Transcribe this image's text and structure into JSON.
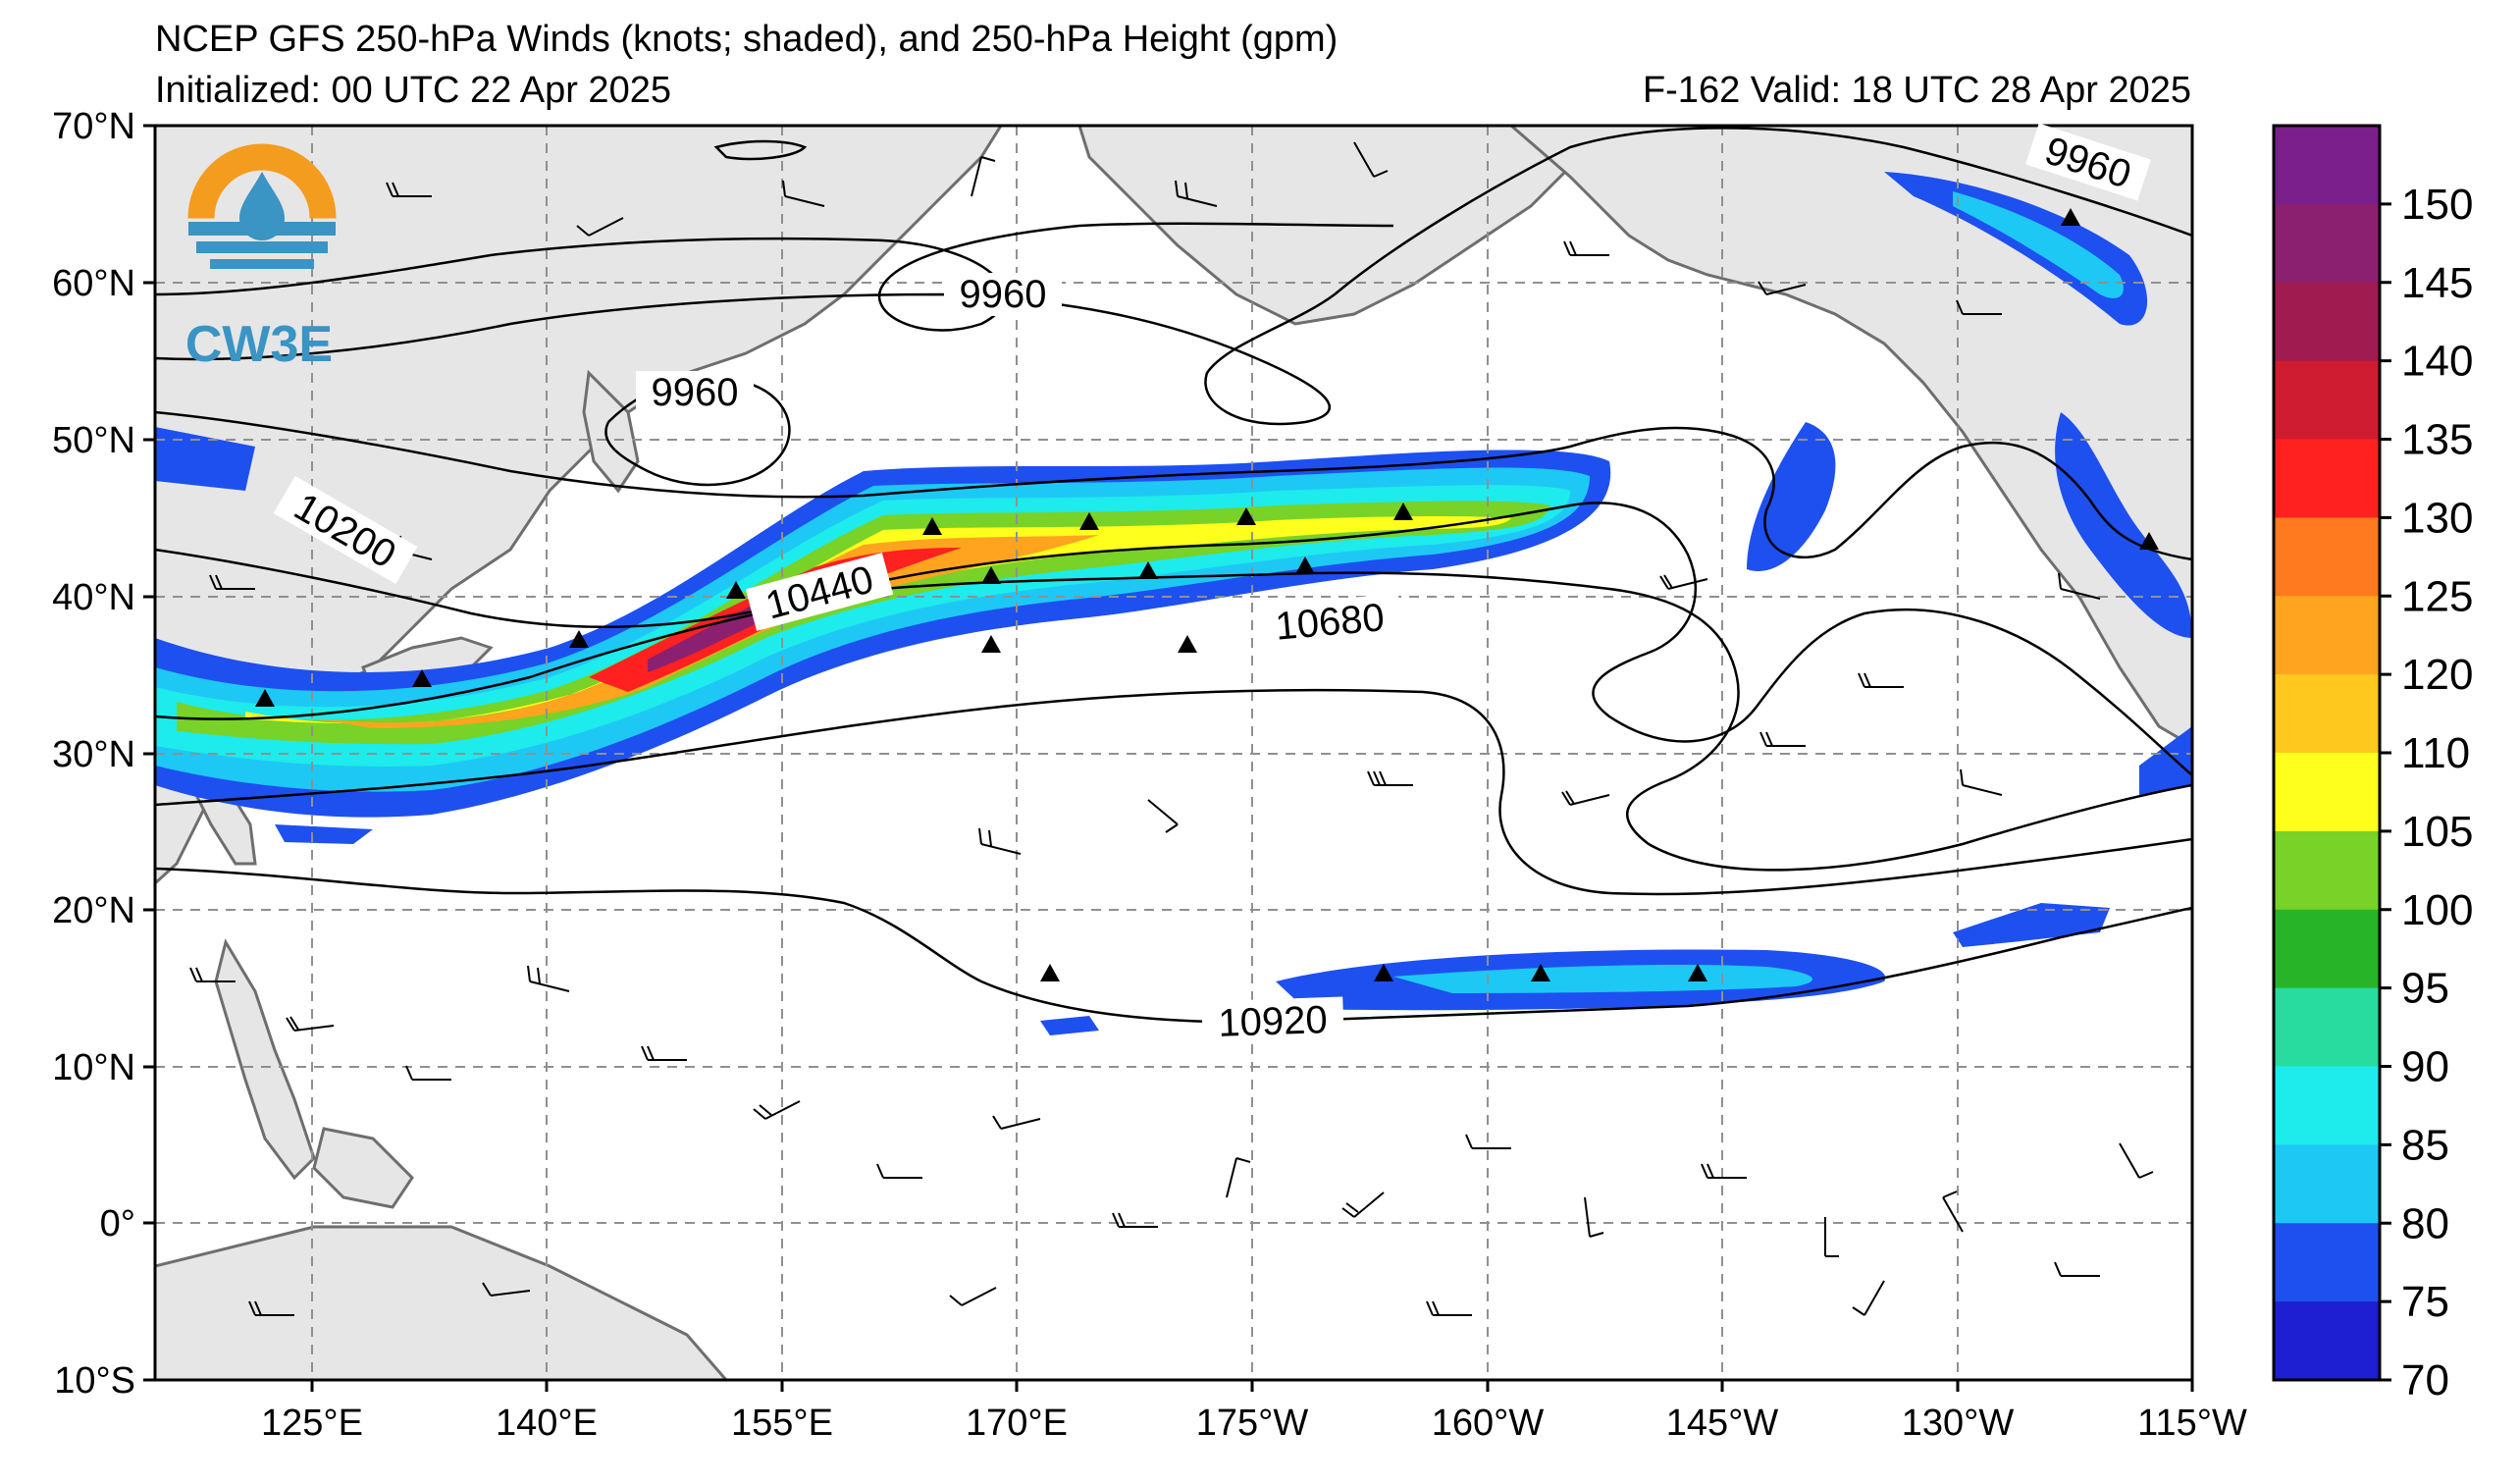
{
  "header": {
    "title": "NCEP GFS 250-hPa Winds (knots; shaded), and 250-hPa Height (gpm)",
    "initialized": "Initialized: 00 UTC 22 Apr 2025",
    "valid": "F-162  Valid: 18 UTC 28 Apr 2025"
  },
  "logo": {
    "text": "CW3E"
  },
  "axes": {
    "lat_labels": [
      "70°N",
      "60°N",
      "50°N",
      "40°N",
      "30°N",
      "20°N",
      "10°N",
      "0°",
      "10°S"
    ],
    "lon_labels": [
      "125°E",
      "140°E",
      "155°E",
      "170°E",
      "175°W",
      "160°W",
      "145°W",
      "130°W",
      "115°W"
    ]
  },
  "contour_labels": {
    "c1": "9960",
    "c2": "9960",
    "c3": "9960",
    "c4": "10200",
    "c5": "10440",
    "c6": "10680",
    "c7": "10920"
  },
  "colorbar": {
    "labels": [
      "150",
      "145",
      "140",
      "135",
      "130",
      "125",
      "120",
      "110",
      "105",
      "100",
      "95",
      "90",
      "85",
      "80",
      "75",
      "70"
    ],
    "colors": [
      "#7a1f8c",
      "#8c2070",
      "#a01c50",
      "#d01c30",
      "#ff2020",
      "#ff7a1e",
      "#ffa41e",
      "#ffc81e",
      "#ffff1e",
      "#78d228",
      "#28b428",
      "#28dca0",
      "#1eebeb",
      "#1ec8f5",
      "#1e50f0",
      "#1e1ed2"
    ]
  },
  "colors": {
    "land": "#e6e6e6",
    "coast": "#6e6e6e",
    "grid": "#909090"
  }
}
